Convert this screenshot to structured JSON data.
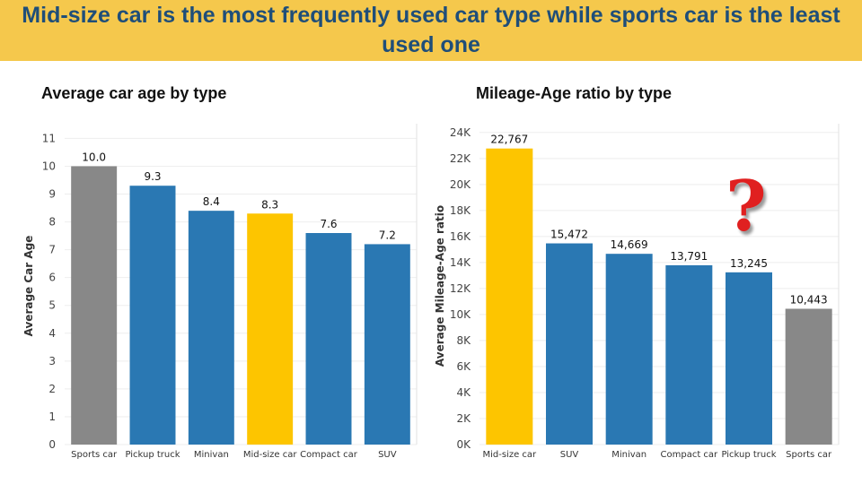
{
  "slide": {
    "title": "Mid-size car is the most frequently used car type while sports car is the least used one"
  },
  "colors": {
    "banner": "#f5c84c",
    "title_text": "#1f4e79",
    "highlight": "#fdc500",
    "default": "#2a78b3",
    "muted": "#888888",
    "question": "#e02020"
  },
  "icons": {
    "question": "question-mark-icon"
  },
  "question_glyph": "?",
  "chart_data": [
    {
      "type": "bar",
      "title": "Average car age by type",
      "ylabel": "Average Car Age",
      "xlabel": "",
      "categories": [
        "Sports car",
        "Pickup truck",
        "Minivan",
        "Mid-size car",
        "Compact car",
        "SUV"
      ],
      "values": [
        10.0,
        9.3,
        8.4,
        8.3,
        7.6,
        7.2
      ],
      "value_labels": [
        "10.0",
        "9.3",
        "8.4",
        "8.3",
        "7.6",
        "7.2"
      ],
      "bar_colors": [
        "#888888",
        "#2a78b3",
        "#2a78b3",
        "#fdc500",
        "#2a78b3",
        "#2a78b3"
      ],
      "yticks": [
        0,
        1,
        2,
        3,
        4,
        5,
        6,
        7,
        8,
        9,
        10,
        11
      ],
      "ytick_labels": [
        "0",
        "1",
        "2",
        "3",
        "4",
        "5",
        "6",
        "7",
        "8",
        "9",
        "10",
        "11"
      ],
      "ylim": [
        0,
        11.4
      ],
      "grid": true
    },
    {
      "type": "bar",
      "title": "Mileage-Age ratio by type",
      "ylabel": "Average Mileage-Age ratio",
      "xlabel": "",
      "categories": [
        "Mid-size car",
        "SUV",
        "Minivan",
        "Compact car",
        "Pickup truck",
        "Sports car"
      ],
      "values": [
        22767,
        15472,
        14669,
        13791,
        13245,
        10443
      ],
      "value_labels": [
        "22,767",
        "15,472",
        "14,669",
        "13,791",
        "13,245",
        "10,443"
      ],
      "bar_colors": [
        "#fdc500",
        "#2a78b3",
        "#2a78b3",
        "#2a78b3",
        "#2a78b3",
        "#888888"
      ],
      "yticks": [
        0,
        2000,
        4000,
        6000,
        8000,
        10000,
        12000,
        14000,
        16000,
        18000,
        20000,
        22000,
        24000
      ],
      "ytick_labels": [
        "0K",
        "2K",
        "4K",
        "6K",
        "8K",
        "10K",
        "12K",
        "14K",
        "16K",
        "18K",
        "20K",
        "22K",
        "24K"
      ],
      "ylim": [
        0,
        24400
      ],
      "grid": true
    }
  ]
}
